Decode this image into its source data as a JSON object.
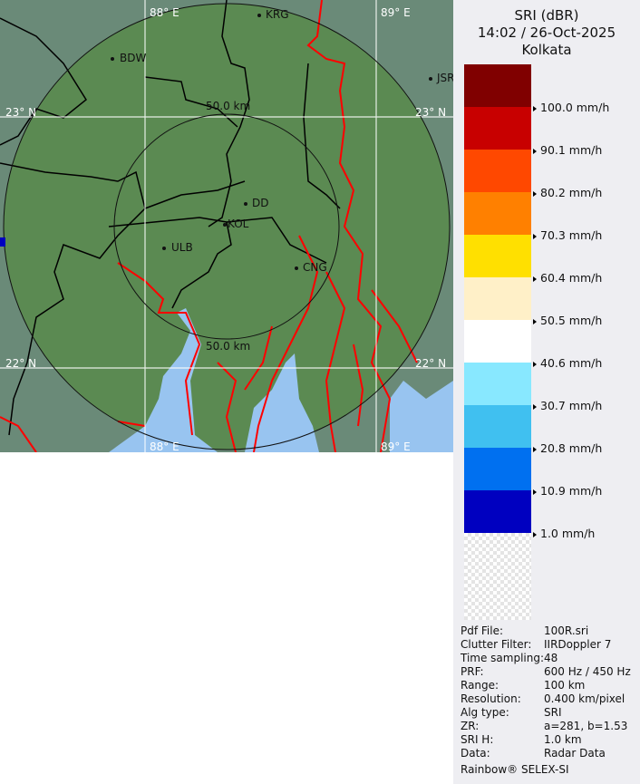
{
  "map": {
    "grid_labels": {
      "lon1": "88° E",
      "lon2": "89° E",
      "lat1": "23° N",
      "lat2": "22° N"
    },
    "rings": [
      "50.0 km",
      "50.0 km"
    ],
    "places": [
      "BDW",
      "KRG",
      "JSR",
      "DD",
      "KOL",
      "ULB",
      "CNG"
    ],
    "colors": {
      "land": "#5b8a52",
      "land_out": "#6a8a78",
      "water": "#98c4f0",
      "rivers": "#ff0000",
      "boundaries": "#000000"
    }
  },
  "panel": {
    "title": "SRI (dBR)",
    "datetime": "14:02 / 26-Oct-2025",
    "site": "Kolkata",
    "legend": [
      {
        "color": "#800000",
        "label": "100.0 mm/h"
      },
      {
        "color": "#c80000",
        "label": "90.1 mm/h"
      },
      {
        "color": "#ff4800",
        "label": "80.2 mm/h"
      },
      {
        "color": "#ff8000",
        "label": "70.3 mm/h"
      },
      {
        "color": "#ffe000",
        "label": "60.4 mm/h"
      },
      {
        "color": "#fff0c8",
        "label": "50.5 mm/h"
      },
      {
        "color": "#ffffff",
        "label": "40.6 mm/h"
      },
      {
        "color": "#88e8ff",
        "label": "30.7 mm/h"
      },
      {
        "color": "#40c0f0",
        "label": "20.8 mm/h"
      },
      {
        "color": "#0070f0",
        "label": "10.9 mm/h"
      },
      {
        "color": "#0000c0",
        "label": "1.0 mm/h"
      }
    ],
    "info": [
      {
        "k": "Pdf File:",
        "v": "100R.sri"
      },
      {
        "k": "Clutter Filter:",
        "v": "IIRDoppler 7"
      },
      {
        "k": "Time sampling:",
        "v": "48"
      },
      {
        "k": "PRF:",
        "v": "600 Hz / 450 Hz"
      },
      {
        "k": "Range:",
        "v": "100 km"
      },
      {
        "k": "Resolution:",
        "v": "0.400 km/pixel"
      },
      {
        "k": "Alg type:",
        "v": "SRI"
      },
      {
        "k": "ZR:",
        "v": "a=281, b=1.53"
      },
      {
        "k": "SRI H:",
        "v": "1.0 km"
      },
      {
        "k": "Data:",
        "v": "Radar Data"
      }
    ],
    "footer": "Rainbow® SELEX-SI"
  }
}
